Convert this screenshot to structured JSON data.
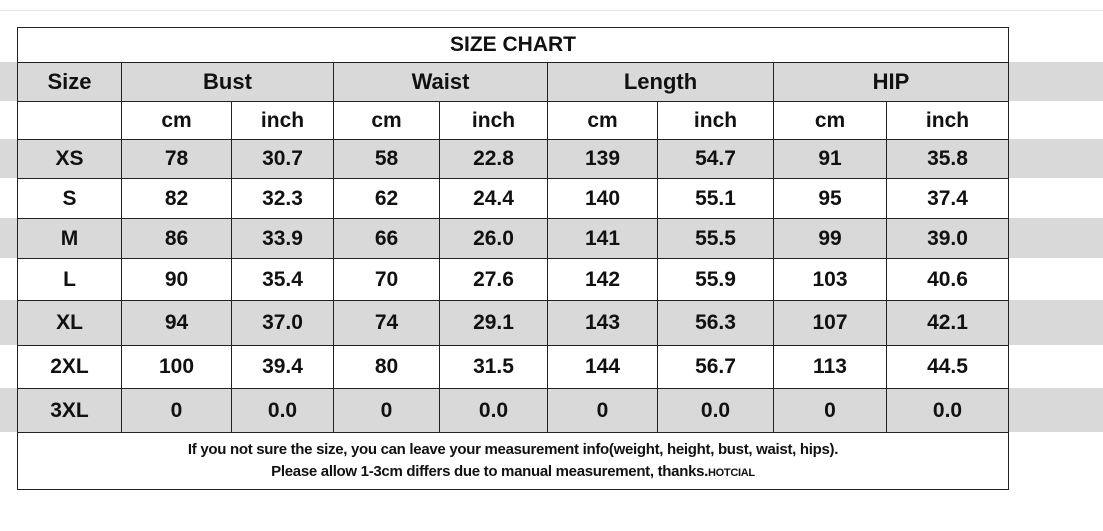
{
  "title": "SIZE CHART",
  "headers": [
    "Size",
    "Bust",
    "Waist",
    "Length",
    "HIP"
  ],
  "units": [
    "cm",
    "inch"
  ],
  "rows": [
    {
      "size": "XS",
      "values": [
        "78",
        "30.7",
        "58",
        "22.8",
        "139",
        "54.7",
        "91",
        "35.8"
      ]
    },
    {
      "size": "S",
      "values": [
        "82",
        "32.3",
        "62",
        "24.4",
        "140",
        "55.1",
        "95",
        "37.4"
      ]
    },
    {
      "size": "M",
      "values": [
        "86",
        "33.9",
        "66",
        "26.0",
        "141",
        "55.5",
        "99",
        "39.0"
      ]
    },
    {
      "size": "L",
      "values": [
        "90",
        "35.4",
        "70",
        "27.6",
        "142",
        "55.9",
        "103",
        "40.6"
      ]
    },
    {
      "size": "XL",
      "values": [
        "94",
        "37.0",
        "74",
        "29.1",
        "143",
        "56.3",
        "107",
        "42.1"
      ]
    },
    {
      "size": "2XL",
      "values": [
        "100",
        "39.4",
        "80",
        "31.5",
        "144",
        "56.7",
        "113",
        "44.5"
      ]
    },
    {
      "size": "3XL",
      "values": [
        "0",
        "0.0",
        "0",
        "0.0",
        "0",
        "0.0",
        "0",
        "0.0"
      ]
    }
  ],
  "footer": {
    "line1": "If you not sure the size, you can leave your measurement info(weight, height, bust, waist, hips).",
    "line2": "Please allow 1-3cm differs due to manual measurement, thanks.",
    "brand": "HOTCIAL"
  },
  "colors": {
    "shaded_row": "#d9d9d9",
    "border": "#222222"
  }
}
